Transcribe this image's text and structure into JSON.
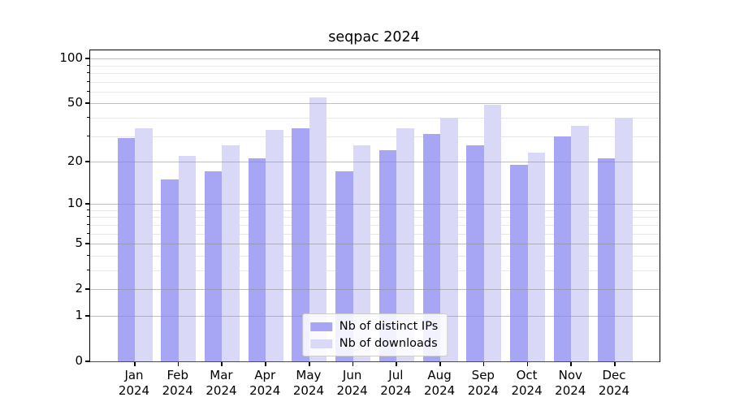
{
  "chart_data": {
    "type": "bar",
    "title": "seqpac 2024",
    "categories": [
      {
        "month": "Jan",
        "year": "2024"
      },
      {
        "month": "Feb",
        "year": "2024"
      },
      {
        "month": "Mar",
        "year": "2024"
      },
      {
        "month": "Apr",
        "year": "2024"
      },
      {
        "month": "May",
        "year": "2024"
      },
      {
        "month": "Jun",
        "year": "2024"
      },
      {
        "month": "Jul",
        "year": "2024"
      },
      {
        "month": "Aug",
        "year": "2024"
      },
      {
        "month": "Sep",
        "year": "2024"
      },
      {
        "month": "Oct",
        "year": "2024"
      },
      {
        "month": "Nov",
        "year": "2024"
      },
      {
        "month": "Dec",
        "year": "2024"
      }
    ],
    "series": [
      {
        "name": "Nb of distinct IPs",
        "color": "#a6a6f4",
        "values": [
          29,
          15,
          17,
          21,
          34,
          17,
          24,
          31,
          26,
          19,
          30,
          21
        ]
      },
      {
        "name": "Nb of downloads",
        "color": "#d9d9f7",
        "values": [
          34,
          22,
          26,
          33,
          55,
          26,
          34,
          40,
          49,
          23,
          35,
          40
        ]
      }
    ],
    "y_axis": {
      "scale": "log1p",
      "major_ticks": [
        100,
        50,
        20,
        10,
        5,
        2,
        1,
        0
      ],
      "minor_ticks": [
        90,
        80,
        70,
        60,
        40,
        30,
        9,
        8,
        7,
        6,
        4,
        3
      ],
      "ylim": [
        0,
        113.5
      ]
    },
    "legend": {
      "position": "lower center"
    },
    "grid": true
  }
}
